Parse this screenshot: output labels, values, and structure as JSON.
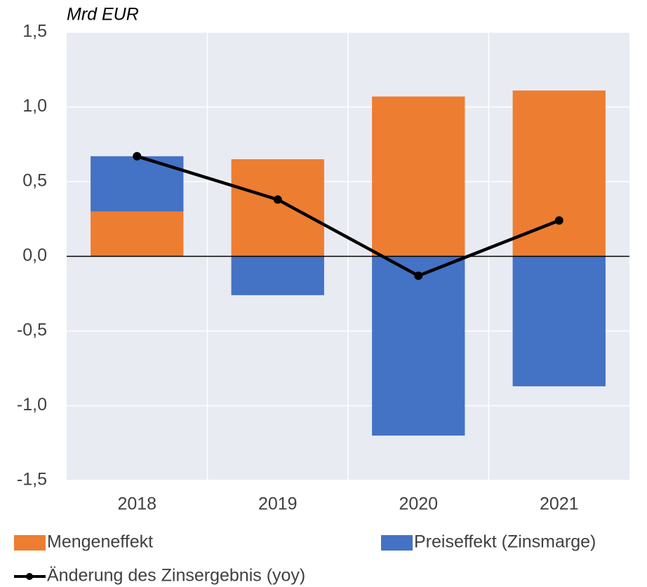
{
  "chart_data": {
    "type": "bar",
    "y_label": "Mrd EUR",
    "categories": [
      "2018",
      "2019",
      "2020",
      "2021"
    ],
    "stacked": true,
    "series": [
      {
        "name": "Mengeneffekt",
        "color": "#ed7d31",
        "values": [
          0.3,
          0.65,
          1.07,
          1.11
        ]
      },
      {
        "name": "Preiseffekt (Zinsmarge)",
        "color": "#4472c4",
        "values": [
          0.37,
          -0.26,
          -1.2,
          -0.87
        ]
      },
      {
        "name": "Änderung des Zinsergebnis (yoy)",
        "type": "line",
        "color": "#000000",
        "values": [
          0.67,
          0.38,
          -0.13,
          0.24
        ]
      }
    ],
    "ylim": [
      -1.5,
      1.5
    ],
    "yticks": [
      {
        "value": -1.5,
        "label": "-1,5"
      },
      {
        "value": -1.0,
        "label": "-1,0"
      },
      {
        "value": -0.5,
        "label": "-0,5"
      },
      {
        "value": 0,
        "label": "0,0"
      },
      {
        "value": 0.5,
        "label": "0,5"
      },
      {
        "value": 1.0,
        "label": "1,0"
      },
      {
        "value": 1.5,
        "label": "1,5"
      }
    ],
    "grid": true,
    "legend": "bottom"
  }
}
